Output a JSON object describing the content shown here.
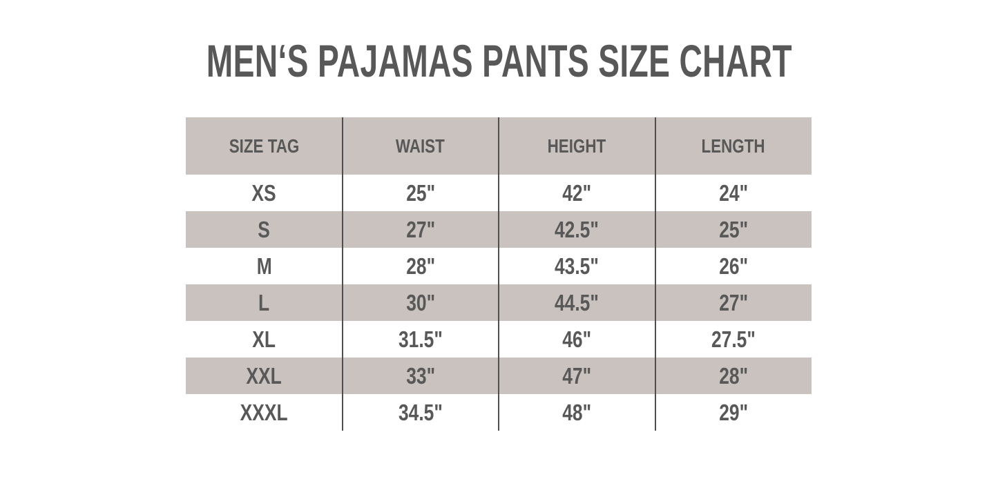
{
  "colors": {
    "page_bg": "#ffffff",
    "table_bg": "#cac2be",
    "text": "#585858",
    "divider": "#4e4e4e"
  },
  "chart_data": {
    "type": "table",
    "title": "MEN‘S PAJAMAS PANTS SIZE CHART",
    "columns": [
      "SIZE TAG",
      "WAIST",
      "HEIGHT",
      "LENGTH"
    ],
    "rows": [
      [
        "XS",
        "25\"",
        "42\"",
        "24\""
      ],
      [
        "S",
        "27\"",
        "42.5\"",
        "25\""
      ],
      [
        "M",
        "28\"",
        "43.5\"",
        "26\""
      ],
      [
        "L",
        "30\"",
        "44.5\"",
        "27\""
      ],
      [
        "XL",
        "31.5\"",
        "46\"",
        "27.5\""
      ],
      [
        "XXL",
        "33\"",
        "47\"",
        "28\""
      ],
      [
        "XXXL",
        "34.5\"",
        "48\"",
        "29\""
      ]
    ]
  }
}
